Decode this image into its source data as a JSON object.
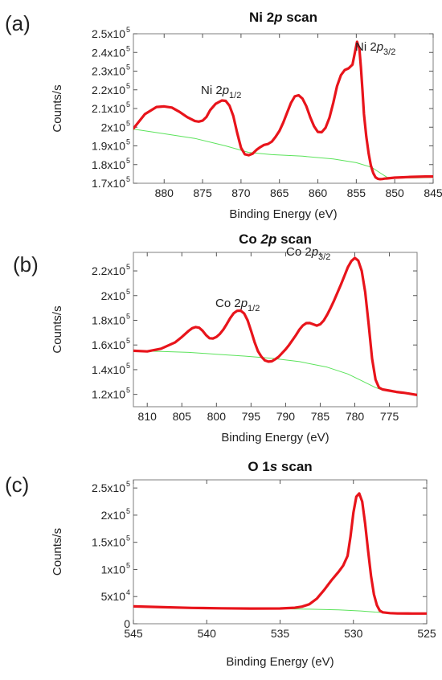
{
  "chart_data": [
    {
      "type": "line",
      "panel_label": "(a)",
      "title_parts": [
        {
          "text": "Ni 2",
          "italic": false
        },
        {
          "text": "p",
          "italic": true
        },
        {
          "text": " scan",
          "italic": false
        }
      ],
      "xlabel": "Binding Energy (eV)",
      "ylabel": "Counts/s",
      "xlim": [
        884,
        845
      ],
      "ylim": [
        170000,
        250000
      ],
      "x_reversed": true,
      "xticks": [
        880,
        875,
        870,
        865,
        860,
        855,
        850,
        845
      ],
      "xtick_labels": [
        "880",
        "875",
        "870",
        "865",
        "860",
        "855",
        "850",
        "845"
      ],
      "yticks": [
        170000,
        180000,
        190000,
        200000,
        210000,
        220000,
        230000,
        240000,
        250000
      ],
      "ytick_mantissa": [
        "1.7x10",
        "1.8x10",
        "1.9x10",
        "2x10",
        "2.1x10",
        "2.2x10",
        "2.3x10",
        "2.4x10",
        "2.5x10"
      ],
      "ytick_exponent": [
        "5",
        "5",
        "5",
        "5",
        "5",
        "5",
        "5",
        "5",
        "5"
      ],
      "grid": false,
      "series": [
        {
          "role": "spectrum",
          "color": "#e8141b",
          "x": [
            884,
            882.5,
            881,
            880,
            879,
            878,
            877,
            876,
            875.5,
            875,
            874.5,
            874,
            873.3,
            872.5,
            872,
            871.5,
            871,
            870.5,
            870,
            869.5,
            869,
            868.5,
            868,
            867.5,
            867,
            866.5,
            866,
            865.5,
            865,
            864.5,
            864,
            863.5,
            863,
            862.5,
            862,
            861.5,
            861,
            860.5,
            860,
            859.5,
            859,
            858.5,
            858,
            857.5,
            857,
            856.5,
            856,
            855.5,
            855.2,
            854.9,
            854.6,
            854.4,
            854.2,
            854,
            853.7,
            853.4,
            853.1,
            852.8,
            852.5,
            852.2,
            851.9,
            851.6,
            851.3,
            851,
            850.5,
            850,
            849,
            848,
            847,
            846,
            845
          ],
          "y": [
            199300,
            207000,
            210800,
            211100,
            210500,
            208200,
            205400,
            203300,
            203000,
            203500,
            205500,
            209200,
            212500,
            214300,
            214100,
            211500,
            206000,
            197000,
            189000,
            185500,
            185000,
            185800,
            187800,
            189300,
            190500,
            191000,
            192300,
            194800,
            198000,
            202500,
            207800,
            213000,
            216500,
            217100,
            215300,
            211200,
            205400,
            200500,
            197500,
            197300,
            199700,
            205000,
            213000,
            222000,
            227800,
            230600,
            231500,
            233500,
            239500,
            245700,
            242000,
            232000,
            220000,
            207000,
            195000,
            186000,
            179500,
            175500,
            173200,
            172400,
            172200,
            172300,
            172500,
            172600,
            172800,
            173000,
            173200,
            173400,
            173500,
            173600,
            173600
          ]
        },
        {
          "role": "background",
          "color": "#5be35b",
          "x": [
            884,
            880,
            876,
            872,
            869,
            866,
            862,
            858,
            855,
            853,
            852,
            851,
            849,
            847,
            845
          ],
          "y": [
            199000,
            196500,
            194000,
            190000,
            186500,
            185300,
            184500,
            183000,
            181000,
            178500,
            175800,
            173200,
            172800,
            172900,
            173200
          ]
        }
      ],
      "annotations": [
        {
          "parts": [
            {
              "text": "Ni 2",
              "kind": "normal"
            },
            {
              "text": "p",
              "kind": "italic"
            },
            {
              "text": "1/2",
              "kind": "sub"
            }
          ]
        },
        {
          "parts": [
            {
              "text": "Ni 2",
              "kind": "normal"
            },
            {
              "text": "p",
              "kind": "italic"
            },
            {
              "text": "3/2",
              "kind": "sub"
            }
          ]
        }
      ]
    },
    {
      "type": "line",
      "panel_label": "(b)",
      "title_parts": [
        {
          "text": "Co ",
          "italic": false
        },
        {
          "text": "2p",
          "italic": true
        },
        {
          "text": " scan",
          "italic": false
        }
      ],
      "xlabel": "Binding Energy (eV)",
      "ylabel": "Counts/s",
      "xlim": [
        812,
        771
      ],
      "ylim": [
        110000,
        235000
      ],
      "x_reversed": true,
      "xticks": [
        810,
        805,
        800,
        795,
        790,
        785,
        780,
        775
      ],
      "xtick_labels": [
        "810",
        "805",
        "800",
        "795",
        "790",
        "785",
        "780",
        "775"
      ],
      "yticks": [
        120000,
        140000,
        160000,
        180000,
        200000,
        220000
      ],
      "ytick_mantissa": [
        "1.2x10",
        "1.4x10",
        "1.6x10",
        "1.8x10",
        "2x10",
        "2.2x10"
      ],
      "ytick_exponent": [
        "5",
        "5",
        "5",
        "5",
        "5",
        "5"
      ],
      "grid": false,
      "series": [
        {
          "role": "spectrum",
          "color": "#e8141b",
          "x": [
            812,
            810,
            808,
            806,
            805,
            804,
            803.5,
            803,
            802.5,
            802,
            801.5,
            801,
            800.5,
            800,
            799.5,
            799,
            798.5,
            798,
            797.5,
            797,
            796.5,
            796,
            795.5,
            795,
            794.5,
            794,
            793.5,
            793,
            792.5,
            792,
            791.5,
            791,
            790.5,
            790,
            789.5,
            789,
            788.5,
            788,
            787.5,
            787,
            786.5,
            786,
            785.5,
            785,
            784.5,
            784,
            783.5,
            783,
            782.5,
            782,
            781.5,
            781,
            780.5,
            780,
            779.5,
            779,
            778.5,
            778,
            777.5,
            777,
            776.5,
            776,
            775,
            774,
            773,
            772,
            771
          ],
          "y": [
            155300,
            154800,
            157000,
            162000,
            166500,
            171500,
            173600,
            174500,
            174000,
            171500,
            168000,
            165500,
            165300,
            166500,
            169000,
            172500,
            177000,
            181800,
            185700,
            187700,
            187800,
            185500,
            180000,
            171500,
            162500,
            155000,
            150500,
            147500,
            146500,
            146800,
            148500,
            150500,
            153500,
            156500,
            160000,
            164000,
            168000,
            172500,
            175800,
            177700,
            177800,
            176700,
            175700,
            176800,
            179800,
            184500,
            190000,
            196000,
            202500,
            209000,
            216000,
            223000,
            228000,
            230500,
            228300,
            220000,
            203000,
            177000,
            149000,
            132000,
            125500,
            124000,
            123000,
            122000,
            121300,
            120500,
            119500
          ]
        },
        {
          "role": "background",
          "color": "#5be35b",
          "x": [
            812,
            808,
            804,
            800,
            796,
            792,
            788,
            784,
            781,
            779,
            777,
            776,
            774,
            771
          ],
          "y": [
            155300,
            154800,
            154000,
            152500,
            151000,
            149200,
            146500,
            142000,
            136500,
            131000,
            125500,
            123500,
            121500,
            119500
          ]
        }
      ],
      "annotations": [
        {
          "parts": [
            {
              "text": "Co 2",
              "kind": "normal"
            },
            {
              "text": "p",
              "kind": "italic"
            },
            {
              "text": "1/2",
              "kind": "sub"
            }
          ]
        },
        {
          "parts": [
            {
              "text": "Co 2",
              "kind": "normal"
            },
            {
              "text": "p",
              "kind": "italic"
            },
            {
              "text": "3/2",
              "kind": "sub"
            }
          ]
        }
      ]
    },
    {
      "type": "line",
      "panel_label": "(c)",
      "title_parts": [
        {
          "text": "O 1",
          "italic": false
        },
        {
          "text": "s",
          "italic": true
        },
        {
          "text": " scan",
          "italic": false
        }
      ],
      "xlabel": "Binding Energy (eV)",
      "ylabel": "Counts/s",
      "xlim": [
        545,
        525
      ],
      "ylim": [
        0,
        265000
      ],
      "x_reversed": true,
      "xticks": [
        545,
        540,
        535,
        530,
        525
      ],
      "xtick_labels": [
        "545",
        "540",
        "535",
        "530",
        "525"
      ],
      "yticks": [
        0,
        50000,
        100000,
        150000,
        200000,
        250000
      ],
      "ytick_mantissa": [
        "0",
        "5x10",
        "1x10",
        "1.5x10",
        "2x10",
        "2.5x10"
      ],
      "ytick_exponent": [
        "",
        "4",
        "5",
        "5",
        "5",
        "5"
      ],
      "grid": false,
      "series": [
        {
          "role": "spectrum",
          "color": "#e8141b",
          "x": [
            545,
            543,
            541,
            539,
            537,
            535,
            534,
            533.5,
            533,
            532.5,
            532,
            531.5,
            531,
            530.7,
            530.4,
            530.2,
            530,
            529.8,
            529.6,
            529.4,
            529.2,
            529,
            528.8,
            528.6,
            528.4,
            528.2,
            528,
            527.5,
            527,
            526,
            525
          ],
          "y": [
            32000,
            30500,
            29200,
            28400,
            28000,
            28200,
            29500,
            31500,
            36000,
            46000,
            62000,
            80000,
            96000,
            107000,
            125000,
            160000,
            205000,
            234000,
            240000,
            225000,
            185000,
            135000,
            88000,
            54000,
            34000,
            24000,
            21000,
            19500,
            19000,
            18800,
            18800
          ]
        },
        {
          "role": "background",
          "color": "#5be35b",
          "x": [
            545,
            540,
            535,
            533,
            531,
            529.5,
            528.5,
            527.5,
            526,
            525
          ],
          "y": [
            31500,
            29000,
            27500,
            26800,
            25500,
            23500,
            21500,
            20000,
            19000,
            18800
          ]
        }
      ],
      "annotations": []
    }
  ]
}
